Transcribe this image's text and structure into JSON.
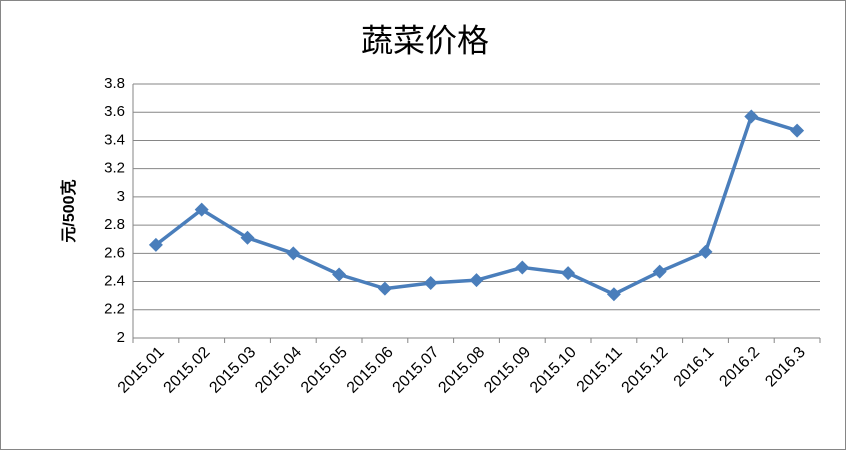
{
  "chart_data": {
    "type": "line",
    "title": "蔬菜价格",
    "y_label": "元/500克",
    "categories": [
      "2015.01",
      "2015.02",
      "2015.03",
      "2015.04",
      "2015.05",
      "2015.06",
      "2015.07",
      "2015.08",
      "2015.09",
      "2015.10",
      "2015.11",
      "2015.12",
      "2016.1",
      "2016.2",
      "2016.3"
    ],
    "values": [
      2.66,
      2.91,
      2.71,
      2.6,
      2.45,
      2.35,
      2.39,
      2.41,
      2.5,
      2.46,
      2.31,
      2.47,
      2.61,
      3.57,
      3.47
    ],
    "color": "#4a7ebb",
    "ylim": [
      2,
      3.8
    ],
    "yticks": [
      2,
      2.2,
      2.4,
      2.6,
      2.8,
      3,
      3.2,
      3.4,
      3.6,
      3.8
    ],
    "grid": true
  }
}
